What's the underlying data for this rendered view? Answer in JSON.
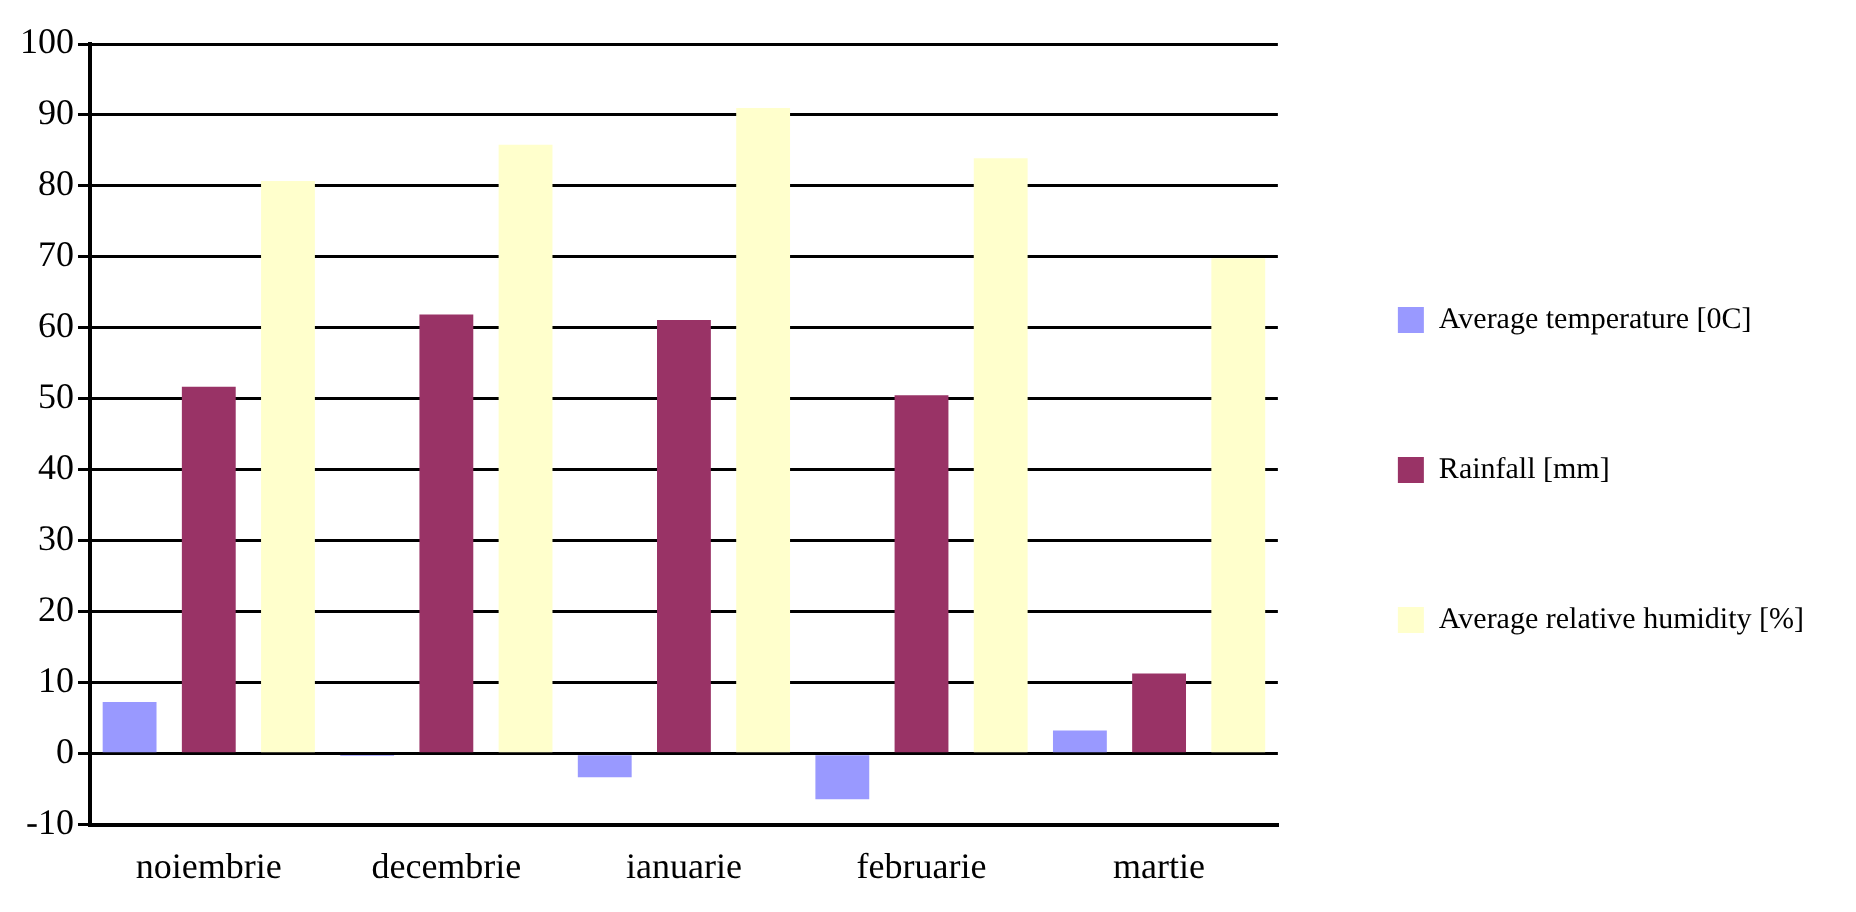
{
  "chart_data": {
    "type": "bar",
    "categories": [
      "noiembrie",
      "decembrie",
      "ianuarie",
      "februarie",
      "martie"
    ],
    "series": [
      {
        "name": "Average temperature [0C]",
        "color": "#9999ff",
        "values": [
          7.3,
          -0.3,
          -3.3,
          -6.4,
          3.3
        ]
      },
      {
        "name": "Rainfall [mm]",
        "color": "#993366",
        "values": [
          51.7,
          61.9,
          61.1,
          50.5,
          11.3
        ]
      },
      {
        "name": "Average relative humidity [%]",
        "color": "#ffffcc",
        "values": [
          80.7,
          85.8,
          91.0,
          83.9,
          69.8
        ]
      }
    ],
    "ylim": [
      -10,
      100
    ],
    "yticks": [
      -10,
      0,
      10,
      20,
      30,
      40,
      50,
      60,
      70,
      80,
      90,
      100
    ],
    "grid": "y",
    "legend": "right"
  }
}
